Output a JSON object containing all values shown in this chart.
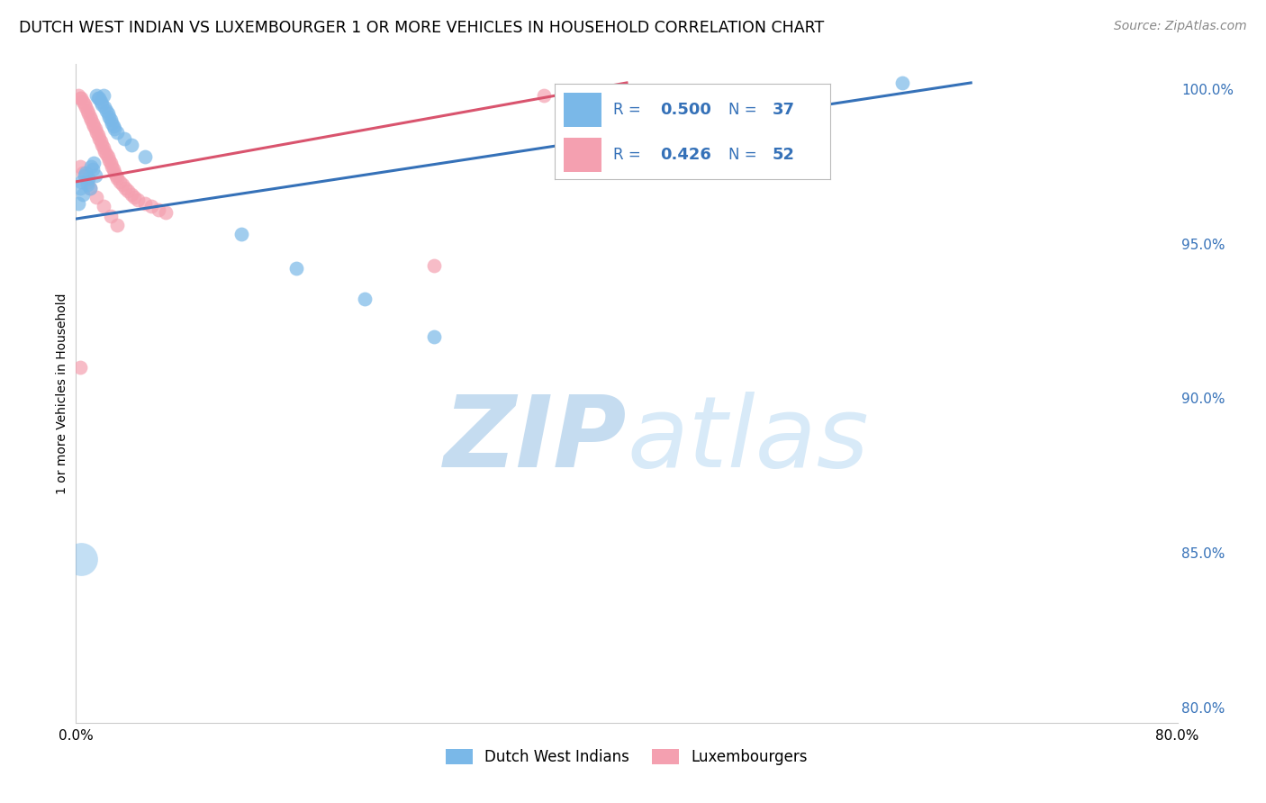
{
  "title": "DUTCH WEST INDIAN VS LUXEMBOURGER 1 OR MORE VEHICLES IN HOUSEHOLD CORRELATION CHART",
  "source": "Source: ZipAtlas.com",
  "ylabel": "1 or more Vehicles in Household",
  "xmin": 0.0,
  "xmax": 0.8,
  "ymin": 0.795,
  "ymax": 1.008,
  "xtick_positions": [
    0.0,
    0.1,
    0.2,
    0.3,
    0.4,
    0.5,
    0.6,
    0.7,
    0.8
  ],
  "xtick_labels": [
    "0.0%",
    "",
    "",
    "",
    "",
    "",
    "",
    "",
    "80.0%"
  ],
  "ytick_positions": [
    0.8,
    0.85,
    0.9,
    0.95,
    1.0
  ],
  "ytick_labels": [
    "80.0%",
    "85.0%",
    "90.0%",
    "95.0%",
    "100.0%"
  ],
  "blue_color": "#7ab8e8",
  "pink_color": "#f4a0b0",
  "blue_line_color": "#3571b8",
  "pink_line_color": "#d9546e",
  "R_blue": 0.5,
  "N_blue": 37,
  "R_pink": 0.426,
  "N_pink": 52,
  "blue_scatter": [
    [
      0.002,
      0.963
    ],
    [
      0.003,
      0.968
    ],
    [
      0.004,
      0.97
    ],
    [
      0.005,
      0.966
    ],
    [
      0.006,
      0.972
    ],
    [
      0.007,
      0.973
    ],
    [
      0.008,
      0.969
    ],
    [
      0.009,
      0.971
    ],
    [
      0.01,
      0.968
    ],
    [
      0.011,
      0.975
    ],
    [
      0.012,
      0.974
    ],
    [
      0.013,
      0.976
    ],
    [
      0.014,
      0.972
    ],
    [
      0.015,
      0.998
    ],
    [
      0.016,
      0.997
    ],
    [
      0.017,
      0.997
    ],
    [
      0.018,
      0.996
    ],
    [
      0.019,
      0.995
    ],
    [
      0.02,
      0.998
    ],
    [
      0.021,
      0.994
    ],
    [
      0.022,
      0.993
    ],
    [
      0.023,
      0.992
    ],
    [
      0.024,
      0.991
    ],
    [
      0.025,
      0.99
    ],
    [
      0.026,
      0.989
    ],
    [
      0.027,
      0.988
    ],
    [
      0.028,
      0.987
    ],
    [
      0.03,
      0.986
    ],
    [
      0.035,
      0.984
    ],
    [
      0.04,
      0.982
    ],
    [
      0.05,
      0.978
    ],
    [
      0.12,
      0.953
    ],
    [
      0.16,
      0.942
    ],
    [
      0.21,
      0.932
    ],
    [
      0.26,
      0.92
    ],
    [
      0.6,
      1.002
    ],
    [
      0.004,
      0.848
    ]
  ],
  "pink_scatter": [
    [
      0.002,
      0.998
    ],
    [
      0.003,
      0.997
    ],
    [
      0.004,
      0.997
    ],
    [
      0.005,
      0.996
    ],
    [
      0.006,
      0.995
    ],
    [
      0.007,
      0.994
    ],
    [
      0.008,
      0.993
    ],
    [
      0.009,
      0.992
    ],
    [
      0.01,
      0.991
    ],
    [
      0.011,
      0.99
    ],
    [
      0.012,
      0.989
    ],
    [
      0.013,
      0.988
    ],
    [
      0.014,
      0.987
    ],
    [
      0.015,
      0.986
    ],
    [
      0.016,
      0.985
    ],
    [
      0.017,
      0.984
    ],
    [
      0.018,
      0.983
    ],
    [
      0.019,
      0.982
    ],
    [
      0.02,
      0.981
    ],
    [
      0.021,
      0.98
    ],
    [
      0.022,
      0.979
    ],
    [
      0.023,
      0.978
    ],
    [
      0.024,
      0.977
    ],
    [
      0.025,
      0.976
    ],
    [
      0.026,
      0.975
    ],
    [
      0.027,
      0.974
    ],
    [
      0.028,
      0.973
    ],
    [
      0.029,
      0.972
    ],
    [
      0.03,
      0.971
    ],
    [
      0.032,
      0.97
    ],
    [
      0.034,
      0.969
    ],
    [
      0.036,
      0.968
    ],
    [
      0.038,
      0.967
    ],
    [
      0.04,
      0.966
    ],
    [
      0.042,
      0.965
    ],
    [
      0.045,
      0.964
    ],
    [
      0.05,
      0.963
    ],
    [
      0.055,
      0.962
    ],
    [
      0.06,
      0.961
    ],
    [
      0.065,
      0.96
    ],
    [
      0.003,
      0.975
    ],
    [
      0.005,
      0.973
    ],
    [
      0.008,
      0.97
    ],
    [
      0.01,
      0.968
    ],
    [
      0.015,
      0.965
    ],
    [
      0.02,
      0.962
    ],
    [
      0.025,
      0.959
    ],
    [
      0.03,
      0.956
    ],
    [
      0.003,
      0.91
    ],
    [
      0.26,
      0.943
    ],
    [
      0.34,
      0.998
    ],
    [
      0.375,
      0.998
    ]
  ],
  "blue_line_x": [
    0.0,
    0.65
  ],
  "blue_line_y": [
    0.958,
    1.002
  ],
  "pink_line_x": [
    0.0,
    0.4
  ],
  "pink_line_y": [
    0.97,
    1.002
  ],
  "watermark_zip": "ZIP",
  "watermark_atlas": "atlas",
  "watermark_color": "#d8eaf8",
  "background_color": "#ffffff",
  "grid_color": "#dddddd",
  "legend_bottom": [
    "Dutch West Indians",
    "Luxembourgers"
  ]
}
